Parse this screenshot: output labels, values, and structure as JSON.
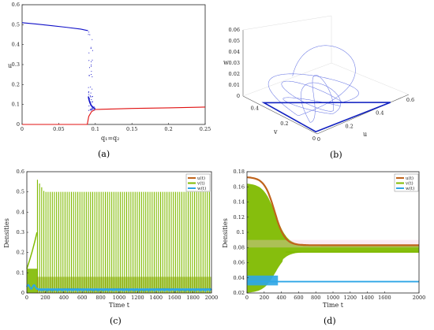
{
  "chart_data": [
    {
      "panel_label": "(a)",
      "type": "scatter",
      "xlabel": "q₁=q₂",
      "ylabel": "u",
      "xlim": [
        0,
        0.25
      ],
      "ylim": [
        0,
        0.6
      ],
      "xticks": [
        "0",
        "0.05",
        "0.1",
        "0.15",
        "0.2",
        "0.25"
      ],
      "yticks": [
        "0",
        "0.1",
        "0.2",
        "0.3",
        "0.4",
        "0.5",
        "0.6"
      ],
      "grid": false,
      "series": [
        {
          "color": "#1010c8",
          "x": [
            0,
            0.02,
            0.04,
            0.06,
            0.08,
            0.09
          ],
          "values": [
            0.51,
            0.503,
            0.495,
            0.487,
            0.478,
            0.47
          ]
        },
        {
          "color": "#e01010",
          "x": [
            0,
            0.08,
            0.089,
            0.091,
            0.095,
            0.1,
            0.15,
            0.2,
            0.25
          ],
          "values": [
            0,
            0,
            0,
            0.04,
            0.065,
            0.075,
            0.08,
            0.083,
            0.087
          ]
        }
      ]
    },
    {
      "panel_label": "(b)",
      "type": "line",
      "projection": "3d",
      "xlabel": "u",
      "ylabel": "v",
      "zlabel": "w",
      "u_ticks": [
        "0",
        "0.2",
        "0.4",
        "0.6"
      ],
      "v_ticks": [
        "0",
        "0.2",
        "0.4"
      ],
      "w_ticks": [
        "0",
        "0.01",
        "0.02",
        "0.03",
        "0.04",
        "0.05",
        "0.06"
      ],
      "series_color": "#4455dd"
    },
    {
      "panel_label": "(c)",
      "type": "line",
      "xlabel": "Time t",
      "ylabel": "Densities",
      "xlim": [
        0,
        2000
      ],
      "ylim": [
        0,
        0.6
      ],
      "xticks": [
        "0",
        "200",
        "400",
        "600",
        "800",
        "1000",
        "1200",
        "1400",
        "1600",
        "1800",
        "2000"
      ],
      "yticks": [
        "0",
        "0.1",
        "0.2",
        "0.3",
        "0.4",
        "0.5",
        "0.6"
      ],
      "legend": "top-right",
      "series": [
        {
          "name": "u(t)",
          "color": "#c0631b",
          "peak": 0.5,
          "trough": 0.0
        },
        {
          "name": "v(t)",
          "color": "#7fba00",
          "peak": 0.5,
          "trough": 0.0
        },
        {
          "name": "w(t)",
          "color": "#2ea6e6",
          "peak": 0.03,
          "trough": 0.005
        }
      ]
    },
    {
      "panel_label": "(d)",
      "type": "line",
      "xlabel": "Time t",
      "ylabel": "Densities",
      "xlim": [
        0,
        2000
      ],
      "ylim": [
        0.02,
        0.18
      ],
      "xticks": [
        "0",
        "200",
        "400",
        "600",
        "800",
        "1000",
        "1200",
        "1400",
        "1600",
        "2000"
      ],
      "xticks_values": [
        0,
        200,
        400,
        600,
        800,
        1000,
        1200,
        1400,
        1600,
        2000
      ],
      "yticks": [
        "0.02",
        "0.04",
        "0.06",
        "0.08",
        "0.1",
        "0.12",
        "0.14",
        "0.16",
        "0.18"
      ],
      "legend": "top-right",
      "series": [
        {
          "name": "u(t)",
          "color": "#c0631b",
          "steady": 0.083
        },
        {
          "name": "v(t)",
          "color": "#7fba00",
          "steady": 0.074
        },
        {
          "name": "w(t)",
          "color": "#2ea6e6",
          "steady": 0.035
        }
      ]
    }
  ]
}
